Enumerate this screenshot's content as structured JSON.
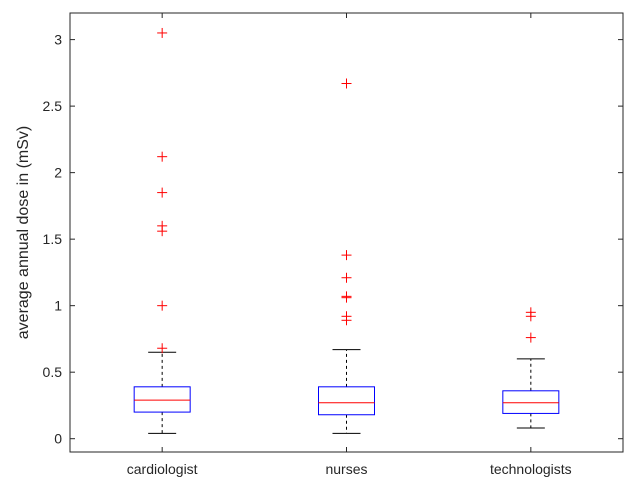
{
  "chart_data": {
    "type": "box",
    "title": "",
    "xlabel": "",
    "ylabel": "average annual dose in (mSv)",
    "ylim": [
      -0.1,
      3.2
    ],
    "yticks": [
      0,
      0.5,
      1,
      1.5,
      2,
      2.5,
      3
    ],
    "ytick_labels": [
      "0",
      "0.5",
      "1",
      "1.5",
      "2",
      "2.5",
      "3"
    ],
    "grid": false,
    "categories": [
      "cardiologist",
      "nurses",
      "technologists"
    ],
    "boxes": [
      {
        "category": "cardiologist",
        "whisker_low": 0.04,
        "q1": 0.2,
        "median": 0.29,
        "q3": 0.39,
        "whisker_high": 0.65,
        "outliers": [
          0.68,
          1.0,
          1.56,
          1.6,
          1.85,
          2.12,
          3.05
        ]
      },
      {
        "category": "nurses",
        "whisker_low": 0.04,
        "q1": 0.18,
        "median": 0.27,
        "q3": 0.39,
        "whisker_high": 0.67,
        "outliers": [
          0.89,
          0.92,
          1.06,
          1.07,
          1.21,
          1.38,
          2.67
        ]
      },
      {
        "category": "technologists",
        "whisker_low": 0.08,
        "q1": 0.19,
        "median": 0.27,
        "q3": 0.36,
        "whisker_high": 0.6,
        "outliers": [
          0.76,
          0.92,
          0.95
        ]
      }
    ],
    "colors": {
      "box": "#0000ff",
      "median": "#ff0000",
      "whisker": "#000000",
      "outlier": "#ff0000",
      "axis": "#262626"
    }
  }
}
